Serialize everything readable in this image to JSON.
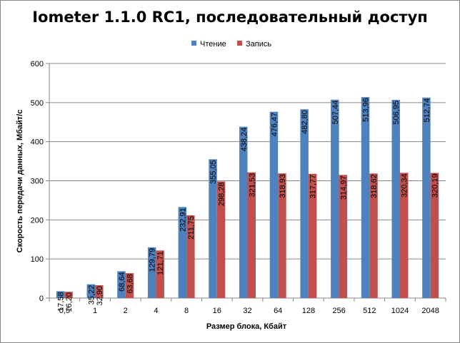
{
  "chart_data": {
    "type": "bar",
    "title": "Iometer 1.1.0 RC1, последовательный доступ",
    "xlabel": "Размер блока, Кбайт",
    "ylabel": "Скорость передачи данных, Мбайт/с",
    "ylim": [
      0,
      600
    ],
    "yticks": [
      "0",
      "100",
      "200",
      "300",
      "400",
      "500",
      "600"
    ],
    "grid": true,
    "legend_position": "top",
    "categories": [
      "0,5",
      "1",
      "2",
      "4",
      "8",
      "16",
      "32",
      "64",
      "128",
      "256",
      "512",
      "1024",
      "2048"
    ],
    "series": [
      {
        "name": "Чтение",
        "color": "#4f81bd",
        "values": [
          17.58,
          35.22,
          68.64,
          129.79,
          232.91,
          355.05,
          438.24,
          476.47,
          482.8,
          507.44,
          513.96,
          506.95,
          512.74
        ],
        "labels": [
          "17,58",
          "35,22",
          "68,64",
          "129,79",
          "232,91",
          "355,05",
          "438,24",
          "476,47",
          "482,80",
          "507,44",
          "513,96",
          "506,95",
          "512,74"
        ]
      },
      {
        "name": "Запись",
        "color": "#c0504d",
        "values": [
          16.2,
          32.9,
          63.68,
          121.71,
          211.75,
          298.28,
          321.53,
          318.93,
          317.77,
          314.97,
          318.62,
          320.34,
          320.19
        ],
        "labels": [
          "16,20",
          "32,90",
          "63,68",
          "121,71",
          "211,75",
          "298,28",
          "321,53",
          "318,93",
          "317,77",
          "314,97",
          "318,62",
          "320,34",
          "320,19"
        ]
      }
    ]
  }
}
